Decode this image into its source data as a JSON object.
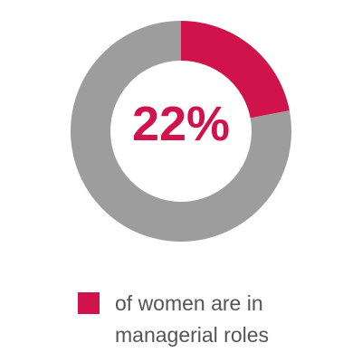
{
  "chart_data": {
    "type": "donut",
    "categories": [
      "of women are in managerial roles",
      null
    ],
    "values": [
      22,
      78
    ],
    "value_labels": [
      "22%",
      null
    ],
    "colors": [
      "#d0134b",
      "#9d9d9d"
    ]
  }
}
